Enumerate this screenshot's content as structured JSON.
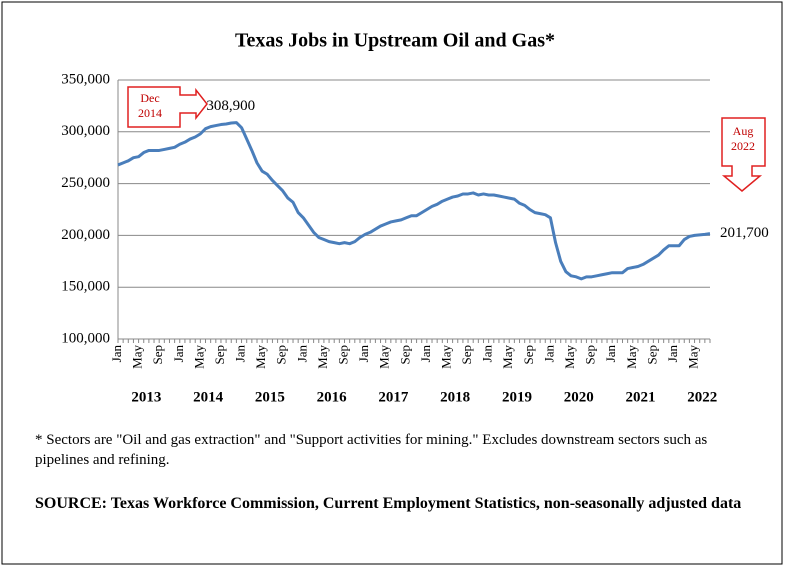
{
  "chart_data": {
    "type": "line",
    "title": "Texas Jobs in Upstream Oil and Gas*",
    "categories": [
      "Jan",
      null,
      null,
      null,
      "May",
      null,
      null,
      null,
      "Sep",
      null,
      null,
      null,
      "Jan",
      null,
      null,
      null,
      "May",
      null,
      null,
      null,
      "Sep",
      null,
      null,
      null,
      "Jan",
      null,
      null,
      null,
      "May",
      null,
      null,
      null,
      "Sep",
      null,
      null,
      null,
      "Jan",
      null,
      null,
      null,
      "May",
      null,
      null,
      null,
      "Sep",
      null,
      null,
      null,
      "Jan",
      null,
      null,
      null,
      "May",
      null,
      null,
      null,
      "Sep",
      null,
      null,
      null,
      "Jan",
      null,
      null,
      null,
      "May",
      null,
      null,
      null,
      "Sep",
      null,
      null,
      null,
      "Jan",
      null,
      null,
      null,
      "May",
      null,
      null,
      null,
      "Sep",
      null,
      null,
      null,
      "Jan",
      null,
      null,
      null,
      "May",
      null,
      null,
      null,
      "Sep",
      null,
      null,
      null,
      "Jan",
      null,
      null,
      null,
      "May",
      null,
      null,
      null,
      "Sep",
      null,
      null,
      null,
      "Jan",
      null,
      null,
      null,
      "May",
      null,
      null,
      null
    ],
    "year_labels": [
      "2013",
      "2014",
      "2015",
      "2016",
      "2017",
      "2018",
      "2019",
      "2020",
      "2021",
      "2022"
    ],
    "series": [
      {
        "color": "#4a7ebb",
        "values": [
          268000,
          270000,
          272000,
          275000,
          276000,
          280000,
          282000,
          282000,
          282000,
          283000,
          284000,
          285000,
          288000,
          290000,
          293000,
          295000,
          298000,
          303000,
          305000,
          306000,
          307000,
          307500,
          308500,
          308900,
          304000,
          293000,
          282000,
          270000,
          262000,
          259000,
          253000,
          248000,
          243000,
          236000,
          232000,
          222000,
          217000,
          210000,
          203000,
          198000,
          196000,
          194000,
          193000,
          192000,
          193000,
          192000,
          194000,
          198000,
          201000,
          203000,
          206000,
          209000,
          211000,
          213000,
          214000,
          215000,
          217000,
          219000,
          219000,
          222000,
          225000,
          228000,
          230000,
          233000,
          235000,
          237000,
          238000,
          240000,
          240000,
          241000,
          239000,
          240000,
          239000,
          239000,
          238000,
          237000,
          236000,
          235000,
          231000,
          229000,
          225000,
          222000,
          221000,
          220000,
          217000,
          193000,
          175000,
          165000,
          161000,
          160000,
          158000,
          160000,
          160000,
          161000,
          162000,
          163000,
          164000,
          164000,
          164000,
          168000,
          169000,
          170000,
          172000,
          175000,
          178000,
          181000,
          186000,
          190000,
          190000,
          190000,
          196000,
          199000,
          200000,
          200500,
          201000,
          201700
        ],
        "value_labels": [
          null,
          null,
          null,
          null,
          null,
          null,
          null,
          null,
          null,
          null,
          null,
          null,
          null,
          null,
          null,
          null,
          null,
          null,
          null,
          null,
          null,
          null,
          null,
          "308,900",
          null,
          null,
          null,
          null,
          null,
          null,
          null,
          null,
          null,
          null,
          null,
          null,
          null,
          null,
          null,
          null,
          null,
          null,
          null,
          null,
          null,
          null,
          null,
          null,
          null,
          null,
          null,
          null,
          null,
          null,
          null,
          null,
          null,
          null,
          null,
          null,
          null,
          null,
          null,
          null,
          null,
          null,
          null,
          null,
          null,
          null,
          null,
          null,
          null,
          null,
          null,
          null,
          null,
          null,
          null,
          null,
          null,
          null,
          null,
          null,
          null,
          null,
          null,
          null,
          null,
          null,
          null,
          null,
          null,
          null,
          null,
          null,
          null,
          null,
          null,
          null,
          null,
          null,
          null,
          null,
          null,
          null,
          null,
          null,
          null,
          null,
          null,
          null,
          null,
          null,
          null,
          "201,700"
        ]
      }
    ],
    "ylim": [
      100000,
      350000
    ],
    "yticks": [
      {
        "value": 100000,
        "label": "100,000"
      },
      {
        "value": 150000,
        "label": "150,000"
      },
      {
        "value": 200000,
        "label": "200,000"
      },
      {
        "value": 250000,
        "label": "250,000"
      },
      {
        "value": 300000,
        "label": "300,000"
      },
      {
        "value": 350000,
        "label": "350,000"
      }
    ],
    "grid": true,
    "annotations": [
      [
        "Dec",
        "2014"
      ],
      [
        "Aug",
        "2022"
      ]
    ],
    "footnote": "* Sectors are \"Oil and gas extraction\" and \"Support activities for mining.\"  Excludes downstream sectors such as pipelines and refining.",
    "source": "SOURCE: Texas Workforce Commission, Current Employment Statistics, non-seasonally adjusted data"
  }
}
